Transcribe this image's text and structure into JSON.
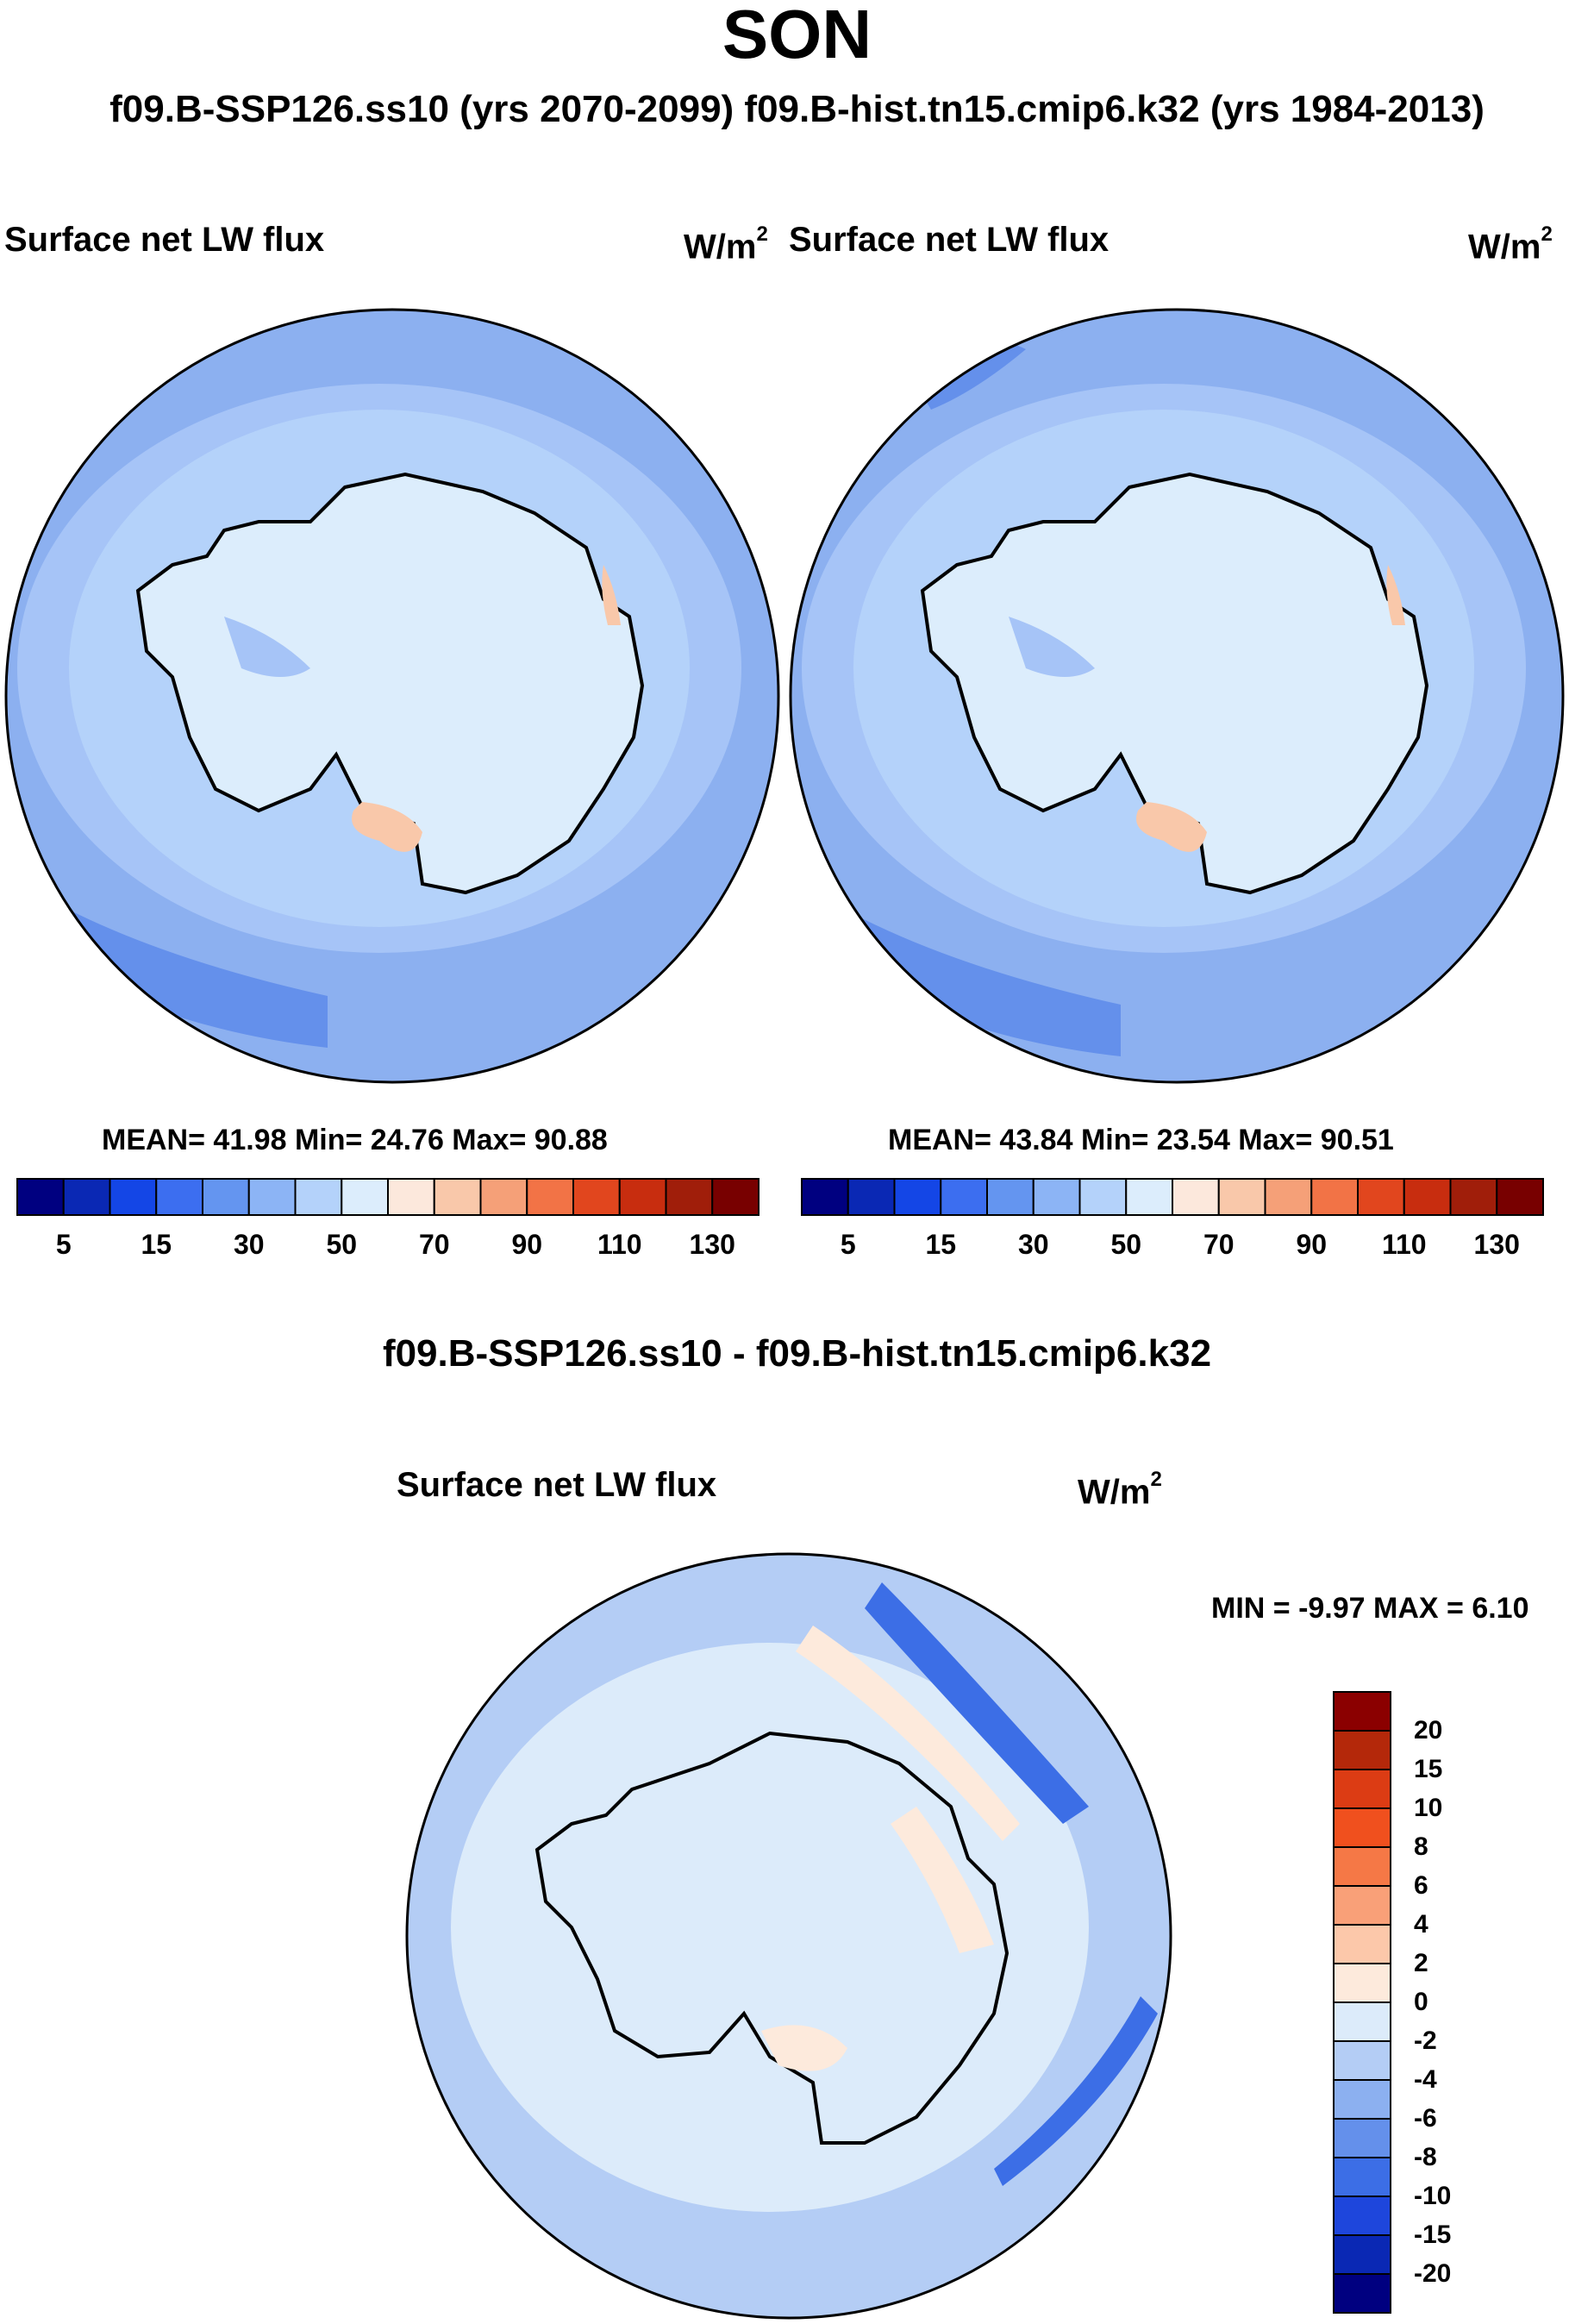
{
  "title": "SON",
  "subtitle": "f09.B-SSP126.ss10 (yrs 2070-2099)  f09.B-hist.tn15.cmip6.k32 (yrs 1984-2013)",
  "panels": [
    {
      "label": "Surface net LW flux",
      "units": "W/m",
      "units_sup": "2",
      "stats": "MEAN=  41.98  Min=  24.76  Max=  90.88"
    },
    {
      "label": "Surface net LW flux",
      "units": "W/m",
      "units_sup": "2",
      "stats": "MEAN=  43.84  Min=  23.54  Max=  90.51"
    }
  ],
  "colorbar_top": {
    "colors": [
      "#000080",
      "#0a28b4",
      "#1446e6",
      "#3c6ef0",
      "#6495f0",
      "#8cb4f5",
      "#b4d2fa",
      "#dcedfc",
      "#fce8dc",
      "#f9c8aa",
      "#f5a078",
      "#f27346",
      "#e1461e",
      "#c82d0f",
      "#a01e0a",
      "#780000"
    ],
    "ticks": [
      "5",
      "15",
      "30",
      "50",
      "70",
      "90",
      "110",
      "130"
    ]
  },
  "diff_title": "f09.B-SSP126.ss10 - f09.B-hist.tn15.cmip6.k32",
  "diff_panel": {
    "label": "Surface net LW flux",
    "units": "W/m",
    "units_sup": "2",
    "stats": "MIN =  -9.97 MAX =   6.10"
  },
  "colorbar_diff": {
    "colors_top_to_bottom": [
      "#8b0000",
      "#b4280a",
      "#dc3c14",
      "#f0501e",
      "#f57846",
      "#f9a078",
      "#fcc8aa",
      "#fdeadc",
      "#dcebfa",
      "#b4cdf5",
      "#8cb0f0",
      "#6490eb",
      "#3c6ee6",
      "#1e46dc",
      "#0a28b4",
      "#000080"
    ],
    "ticks": [
      "20",
      "15",
      "10",
      "8",
      "6",
      "4",
      "2",
      "0",
      "-2",
      "-4",
      "-6",
      "-8",
      "-10",
      "-15",
      "-20"
    ]
  },
  "map_colors": {
    "ocean_outer": "#8cb0f0",
    "ocean_mid": "#a6c4f7",
    "ice_shelf": "#b4d2fa",
    "continent": "#dcedfc",
    "low_band": "#6490eb",
    "warm": "#f9c8aa",
    "warm_strong": "#f5a078",
    "diff_bg": "#dcebfa",
    "diff_ring": "#b4cdf5",
    "diff_strong_neg": "#3c6ee6",
    "diff_pos": "#fdeadc"
  }
}
